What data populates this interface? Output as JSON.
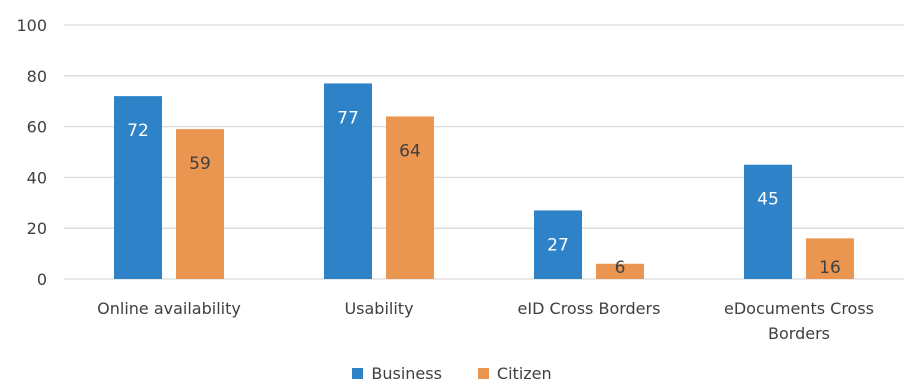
{
  "chart_data": {
    "type": "bar",
    "categories": [
      [
        "Online availability"
      ],
      [
        "Usability"
      ],
      [
        "eID Cross Borders"
      ],
      [
        "eDocuments Cross",
        "Borders"
      ]
    ],
    "series": [
      {
        "name": "Business",
        "color": "#2e83c8",
        "label_color": "#ffffff",
        "values": [
          72,
          77,
          27,
          45
        ]
      },
      {
        "name": "Citizen",
        "color": "#ea9550",
        "label_color": "#404040",
        "values": [
          59,
          64,
          6,
          16
        ]
      }
    ],
    "ylim": [
      0,
      100
    ],
    "yticks": [
      0,
      20,
      40,
      60,
      80,
      100
    ],
    "grid": true,
    "legend_position": "bottom"
  }
}
